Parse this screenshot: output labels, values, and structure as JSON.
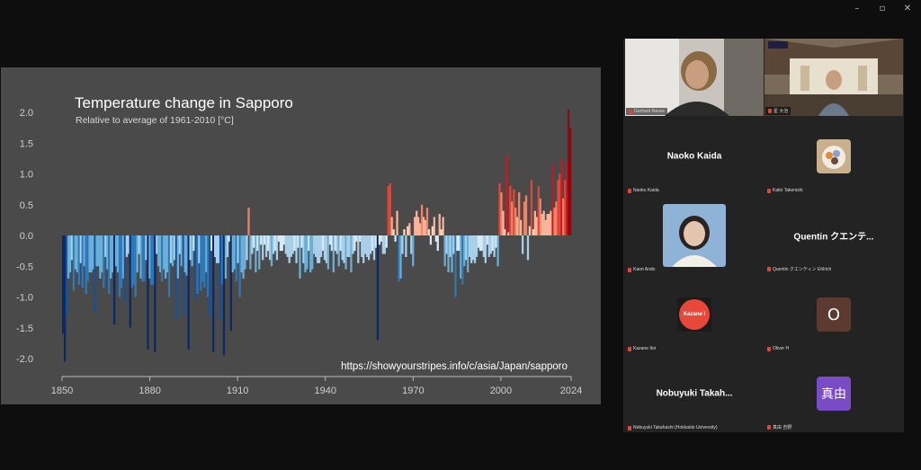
{
  "window_controls": [
    "–",
    "▫",
    "✕"
  ],
  "chart_data": {
    "type": "bar",
    "title": "Temperature change in Sapporo",
    "subtitle": "Relative to average of 1961-2010  [°C]",
    "source": "https://showyourstripes.info/c/asia/Japan/sapporo",
    "x_ticks": [
      "1850",
      "1880",
      "1910",
      "1940",
      "1970",
      "2000",
      "2024"
    ],
    "y_ticks": [
      "2.0",
      "1.5",
      "1.0",
      "0.5",
      "0.0",
      "-0.5",
      "-1.0",
      "-1.5",
      "-2.0"
    ],
    "ylim": [
      -2.1,
      2.1
    ],
    "x_start": 1850,
    "x_end": 2024,
    "values": [
      -1.6,
      -2.05,
      -1.3,
      -0.7,
      -0.6,
      -0.4,
      -0.9,
      -0.55,
      -0.6,
      -0.8,
      -0.45,
      -0.85,
      -0.5,
      -0.95,
      -0.75,
      -0.6,
      -0.6,
      -0.55,
      -1.25,
      -0.5,
      -0.5,
      -0.7,
      -0.6,
      -0.85,
      -0.35,
      -0.55,
      -0.95,
      -0.7,
      -0.6,
      -1.45,
      -0.5,
      -0.6,
      -1.0,
      -0.85,
      -0.7,
      -1.1,
      -0.35,
      -0.3,
      -1.5,
      -0.85,
      -0.8,
      -1.0,
      -0.6,
      -0.3,
      -0.7,
      -0.75,
      -0.75,
      -0.4,
      -1.85,
      -0.7,
      -0.8,
      -0.8,
      -1.9,
      -0.3,
      -0.5,
      -0.6,
      -0.75,
      -0.55,
      -0.7,
      -0.6,
      -1.0,
      -0.45,
      -0.5,
      -0.4,
      -1.35,
      -0.7,
      -0.3,
      -0.5,
      -1.3,
      -0.6,
      -0.65,
      -1.85,
      -0.4,
      -0.5,
      -0.25,
      -1.05,
      -0.95,
      -0.45,
      -0.9,
      -0.75,
      -0.85,
      -0.6,
      -1.0,
      -1.3,
      -0.25,
      -1.9,
      -0.35,
      -0.45,
      -0.45,
      -1.35,
      -0.8,
      -1.95,
      -0.7,
      -0.35,
      -0.1,
      -1.55,
      -0.6,
      -0.55,
      -0.75,
      -0.45,
      -1.0,
      -0.6,
      -0.7,
      -0.55,
      -0.4,
      0.45,
      -0.55,
      -0.3,
      -0.2,
      -0.6,
      -0.25,
      -0.55,
      -0.15,
      -0.4,
      -0.15,
      -0.35,
      -0.25,
      -0.4,
      -0.5,
      -0.3,
      -0.25,
      -0.4,
      -0.1,
      -0.25,
      -0.25,
      -0.15,
      -0.3,
      -0.35,
      -0.45,
      -0.35,
      -0.3,
      -0.25,
      -0.45,
      -0.2,
      -0.7,
      -0.2,
      -0.45,
      -0.6,
      -0.55,
      -0.25,
      -0.6,
      -0.55,
      -0.3,
      -0.35,
      -0.45,
      -0.45,
      -0.35,
      -0.25,
      -0.4,
      -0.45,
      -0.55,
      -0.15,
      -0.25,
      -0.6,
      -0.25,
      -0.3,
      -0.5,
      -0.25,
      -0.4,
      -0.45,
      -0.55,
      -0.35,
      -0.35,
      -0.6,
      -0.3,
      -0.25,
      -0.1,
      -0.45,
      -0.1,
      -0.35,
      -0.45,
      -0.3,
      -0.35,
      -0.4,
      -0.3,
      -0.25,
      -0.4,
      -0.2,
      -1.7,
      -0.15,
      -0.1,
      -0.3,
      -0.3,
      -0.2,
      0.8,
      0.85,
      0.3,
      0.1,
      -0.1,
      0.4,
      -0.75,
      -0.7,
      -0.3,
      0.1,
      -0.35,
      0.15,
      0.2,
      -0.3,
      -0.5,
      0.3,
      0.4,
      0.3,
      0.2,
      0.5,
      0.3,
      0.25,
      0.45,
      0.1,
      -0.15,
      0.15,
      0.3,
      -0.1,
      -0.25,
      0.35,
      0.1,
      0.3,
      -0.5,
      -0.3,
      -0.6,
      -0.35,
      -0.6,
      -0.3,
      -1.0,
      -0.25,
      -0.25,
      -0.7,
      -0.8,
      -0.5,
      -0.4,
      -0.6,
      -0.35,
      -0.45,
      -0.4,
      -0.45,
      -0.35,
      -0.2,
      -0.25,
      -0.25,
      -0.35,
      -0.45,
      -0.15,
      -0.35,
      -0.3,
      -0.25,
      -0.35,
      -0.2,
      -0.5,
      0.85,
      0.7,
      0.4,
      0.1,
      1.3,
      0.05,
      0.8,
      0.55,
      0.75,
      0.45,
      0.3,
      0.7,
      0.25,
      -0.3,
      0.55,
      0.65,
      -0.4,
      0.15,
      0.9,
      0.1,
      0.4,
      0.3,
      0.8,
      0.6,
      0.35,
      0.4,
      0.25,
      0.35,
      0.35,
      0.4,
      1.15,
      0.45,
      0.55,
      0.9,
      1.0,
      1.25,
      0.6,
      0.9,
      1.2,
      2.05,
      1.75
    ]
  },
  "gallery": {
    "tiles": [
      {
        "type": "video",
        "scene": "person",
        "label": "Gerhard Reuss",
        "active": true
      },
      {
        "type": "video",
        "scene": "room",
        "label": "星 大治"
      },
      {
        "type": "name",
        "name": "Naoko Kaida",
        "label": "Naoko Kaida"
      },
      {
        "type": "image",
        "scene": "food",
        "label": "Kaito Takenishi"
      },
      {
        "type": "image",
        "scene": "portrait",
        "label": "Kaori Ando"
      },
      {
        "type": "name",
        "name": "Quentin クエンテ...",
        "label": "Quentin クエンティン Ehlrich"
      },
      {
        "type": "badge",
        "badge_text": "Kazane I",
        "badge_color": "#e8483a",
        "label": "Kazane Itoi"
      },
      {
        "type": "letter",
        "letter": "O",
        "letter_color": "#5c3a30",
        "label": "Oliver H"
      },
      {
        "type": "name",
        "name": "Nobuyuki Takah...",
        "label": "Nobuyuki Takahashi (Hokkaido University)"
      },
      {
        "type": "letter",
        "letter": "真由",
        "letter_color": "#7a4bc7",
        "label": "真由 吉野"
      }
    ]
  }
}
